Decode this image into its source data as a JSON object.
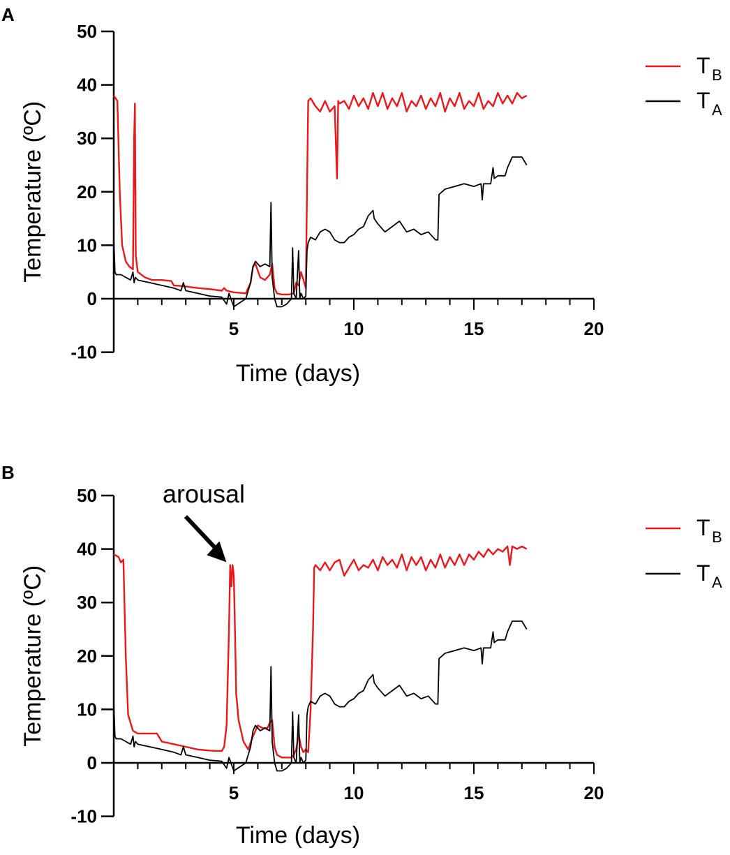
{
  "chart_data": [
    {
      "type": "line",
      "panel_label": "A",
      "xlabel": "Time (days)",
      "ylabel": "Temperature (ºC)",
      "xlim": [
        0,
        20
      ],
      "ylim": [
        -10,
        50
      ],
      "x_ticks": [
        5,
        10,
        15,
        20
      ],
      "y_ticks": [
        -10,
        0,
        10,
        20,
        30,
        40,
        50
      ],
      "grid": false,
      "legend_position": "top-right",
      "series": [
        {
          "name": "TB",
          "label": "T",
          "subscript": "B",
          "color": "#e8191c",
          "x": [
            0,
            0.15,
            0.25,
            0.35,
            0.5,
            0.65,
            0.8,
            0.85,
            0.88,
            0.92,
            1.0,
            1.3,
            1.6,
            2.0,
            2.4,
            2.5,
            3.0,
            3.5,
            4.0,
            4.5,
            4.6,
            4.7,
            5.0,
            5.5,
            5.7,
            5.8,
            5.9,
            6.1,
            6.3,
            6.5,
            6.6,
            6.7,
            6.8,
            7.0,
            7.3,
            7.5,
            7.6,
            7.7,
            7.8,
            7.9,
            8.0,
            8.05,
            8.1,
            8.2,
            8.4,
            8.6,
            8.8,
            9.0,
            9.2,
            9.3,
            9.35,
            9.4,
            9.6,
            9.8,
            10.0,
            10.2,
            10.4,
            10.6,
            10.8,
            11.0,
            11.2,
            11.4,
            11.6,
            11.8,
            12.0,
            12.2,
            12.4,
            12.6,
            12.8,
            13.0,
            13.2,
            13.4,
            13.6,
            13.8,
            14.0,
            14.2,
            14.4,
            14.6,
            14.8,
            15.0,
            15.2,
            15.4,
            15.6,
            15.8,
            16.0,
            16.2,
            16.4,
            16.6,
            16.8,
            17.0,
            17.2
          ],
          "values": [
            38,
            37,
            20,
            10,
            7,
            6,
            5.5,
            30,
            36.5,
            8,
            5,
            4,
            3.5,
            3.5,
            3.3,
            2.5,
            2.3,
            2,
            1.8,
            1.5,
            2,
            1.5,
            1.2,
            1,
            3,
            6,
            6.5,
            4,
            3.5,
            4.5,
            6.5,
            2,
            1,
            0.8,
            0.8,
            1,
            3,
            2.5,
            5,
            3.5,
            2,
            20,
            37,
            37.5,
            36,
            35,
            37,
            35,
            36,
            22.5,
            37,
            36.5,
            37,
            35.5,
            38,
            36,
            37.5,
            35.5,
            38.5,
            36,
            38.5,
            35.5,
            37.5,
            36,
            38.5,
            35,
            37,
            36,
            38,
            35.5,
            37.5,
            36,
            38.5,
            35,
            37.5,
            36,
            38.5,
            35.5,
            37,
            36,
            38.5,
            35.5,
            37,
            36,
            38.5,
            36.5,
            38,
            36.5,
            38.5,
            37.5,
            38
          ]
        },
        {
          "name": "TA",
          "label": "T",
          "subscript": "A",
          "color": "#000000",
          "x": [
            0,
            0.05,
            0.1,
            0.3,
            0.5,
            0.7,
            0.8,
            0.85,
            0.9,
            1.0,
            1.5,
            2.0,
            2.5,
            2.8,
            2.9,
            3.0,
            3.5,
            4.0,
            4.5,
            4.7,
            4.8,
            5.0,
            5.5,
            5.7,
            5.8,
            5.9,
            6.1,
            6.3,
            6.5,
            6.55,
            6.6,
            6.7,
            6.8,
            7.0,
            7.2,
            7.4,
            7.45,
            7.5,
            7.6,
            7.7,
            7.75,
            7.8,
            7.9,
            8.0,
            8.05,
            8.1,
            8.2,
            8.4,
            8.6,
            8.8,
            9.0,
            9.2,
            9.4,
            9.6,
            9.8,
            10.0,
            10.2,
            10.4,
            10.6,
            10.8,
            10.85,
            11.0,
            11.3,
            11.6,
            11.9,
            12.2,
            12.5,
            12.8,
            13.1,
            13.4,
            13.5,
            13.55,
            13.8,
            14.2,
            14.6,
            15.0,
            15.3,
            15.35,
            15.4,
            15.7,
            15.8,
            15.85,
            16.0,
            16.3,
            16.4,
            16.6,
            16.7,
            17.0,
            17.2
          ],
          "values": [
            11.5,
            5,
            4.5,
            4.5,
            4,
            3.5,
            5,
            3,
            4,
            3.5,
            3,
            2.5,
            2,
            1.5,
            3,
            1.5,
            1,
            0.5,
            0.3,
            -1,
            1,
            -1.5,
            0,
            3,
            6,
            7,
            6,
            6.5,
            6,
            18,
            4,
            0,
            -1.5,
            -1.5,
            -1,
            0,
            9.5,
            1,
            0,
            9,
            0,
            1,
            0,
            0.5,
            9,
            10.5,
            11.5,
            11,
            12.5,
            13,
            12.5,
            11,
            10.5,
            10.5,
            11.5,
            12,
            13,
            13.5,
            15.5,
            16.5,
            15,
            14,
            12.5,
            13.5,
            14.5,
            12.5,
            13,
            12,
            12.5,
            11,
            11,
            19.5,
            20.5,
            21,
            21.5,
            21,
            21.5,
            18.5,
            21.5,
            21.5,
            24.5,
            22.5,
            23,
            23,
            24.5,
            26.5,
            26.5,
            26.5,
            25
          ]
        }
      ]
    },
    {
      "type": "line",
      "panel_label": "B",
      "xlabel": "Time (days)",
      "ylabel": "Temperature (ºC)",
      "xlim": [
        0,
        20
      ],
      "ylim": [
        -10,
        50
      ],
      "x_ticks": [
        5,
        10,
        15,
        20
      ],
      "y_ticks": [
        -10,
        0,
        10,
        20,
        30,
        40,
        50
      ],
      "grid": false,
      "legend_position": "top-right",
      "annotations": [
        {
          "text": "arousal",
          "x": 4.75,
          "y": 36.5
        }
      ],
      "series": [
        {
          "name": "TB",
          "label": "T",
          "subscript": "B",
          "color": "#e8191c",
          "x": [
            0,
            0.2,
            0.3,
            0.4,
            0.5,
            0.6,
            0.8,
            1.0,
            1.5,
            1.8,
            2.0,
            2.5,
            3.0,
            3.5,
            4.0,
            4.5,
            4.6,
            4.7,
            4.8,
            4.85,
            4.9,
            4.95,
            5.0,
            5.05,
            5.1,
            5.2,
            5.4,
            5.6,
            5.8,
            6.0,
            6.2,
            6.4,
            6.5,
            6.6,
            6.7,
            6.8,
            7.0,
            7.4,
            7.5,
            7.6,
            7.7,
            7.8,
            7.9,
            8.0,
            8.1,
            8.2,
            8.3,
            8.35,
            8.4,
            8.6,
            8.8,
            9.0,
            9.2,
            9.4,
            9.6,
            9.8,
            10.0,
            10.2,
            10.4,
            10.6,
            10.8,
            11.0,
            11.2,
            11.4,
            11.6,
            11.8,
            12.0,
            12.2,
            12.4,
            12.6,
            12.8,
            13.0,
            13.2,
            13.4,
            13.6,
            13.8,
            14.0,
            14.2,
            14.4,
            14.6,
            14.8,
            15.0,
            15.2,
            15.4,
            15.6,
            15.8,
            16.0,
            16.2,
            16.4,
            16.5,
            16.6,
            16.8,
            17.0,
            17.2
          ],
          "values": [
            39,
            38.5,
            37.5,
            38,
            20,
            9,
            6,
            5.5,
            5.5,
            5.5,
            4,
            3.5,
            3,
            2.5,
            2.3,
            2.2,
            3,
            7,
            25,
            37,
            33,
            37,
            35,
            25,
            13,
            8,
            4,
            2.5,
            5,
            7,
            6.5,
            6.5,
            7.5,
            8,
            3,
            1.5,
            1,
            1,
            1.5,
            2.5,
            5.5,
            3,
            2,
            2.5,
            2,
            10,
            25,
            36.5,
            37,
            36,
            37.5,
            36,
            37.5,
            38,
            35,
            36.5,
            38,
            36,
            37,
            36.5,
            38,
            36,
            38.5,
            37,
            38,
            36.5,
            39,
            36,
            38.5,
            37,
            38.5,
            36,
            38,
            36.5,
            39,
            36.5,
            38.5,
            37,
            39,
            37,
            39,
            38,
            39.5,
            38.5,
            40,
            39,
            40,
            39.5,
            40.5,
            37,
            40.5,
            40,
            40.5,
            40
          ]
        },
        {
          "name": "TA",
          "label": "T",
          "subscript": "A",
          "color": "#000000",
          "x": [
            0,
            0.05,
            0.1,
            0.3,
            0.5,
            0.7,
            0.8,
            0.85,
            0.9,
            1.0,
            1.5,
            2.0,
            2.5,
            2.8,
            2.9,
            3.0,
            3.5,
            4.0,
            4.5,
            4.7,
            4.8,
            5.0,
            5.5,
            5.7,
            5.8,
            5.9,
            6.1,
            6.3,
            6.5,
            6.55,
            6.6,
            6.7,
            6.8,
            7.0,
            7.2,
            7.4,
            7.45,
            7.5,
            7.6,
            7.7,
            7.75,
            7.8,
            7.9,
            8.0,
            8.05,
            8.1,
            8.2,
            8.4,
            8.6,
            8.8,
            9.0,
            9.2,
            9.4,
            9.6,
            9.8,
            10.0,
            10.2,
            10.4,
            10.6,
            10.8,
            10.85,
            11.0,
            11.3,
            11.6,
            11.9,
            12.2,
            12.5,
            12.8,
            13.1,
            13.4,
            13.5,
            13.55,
            13.8,
            14.2,
            14.6,
            15.0,
            15.3,
            15.35,
            15.4,
            15.7,
            15.8,
            15.85,
            16.0,
            16.3,
            16.4,
            16.6,
            16.7,
            17.0,
            17.2
          ],
          "values": [
            11.5,
            5,
            4.5,
            4.5,
            4,
            3.5,
            5,
            3,
            4,
            3.5,
            3,
            2.5,
            2,
            1.5,
            3,
            1.5,
            1,
            0.5,
            0.3,
            -1,
            1,
            -1.5,
            0,
            3,
            6,
            7,
            6,
            6.5,
            6,
            18,
            4,
            0,
            -1.5,
            -1.5,
            -1,
            0,
            9.5,
            1,
            0,
            9,
            0,
            1,
            0,
            0.5,
            9,
            10.5,
            11.5,
            11,
            12.5,
            13,
            12.5,
            11,
            10.5,
            10.5,
            11.5,
            12,
            13,
            13.5,
            15.5,
            16.5,
            15,
            14,
            12.5,
            13.5,
            14.5,
            12.5,
            13,
            12,
            12.5,
            11,
            11,
            19.5,
            20.5,
            21,
            21.5,
            21,
            21.5,
            18.5,
            21.5,
            21.5,
            24.5,
            22.5,
            23,
            23,
            24.5,
            26.5,
            26.5,
            26.5,
            25
          ]
        }
      ]
    }
  ]
}
